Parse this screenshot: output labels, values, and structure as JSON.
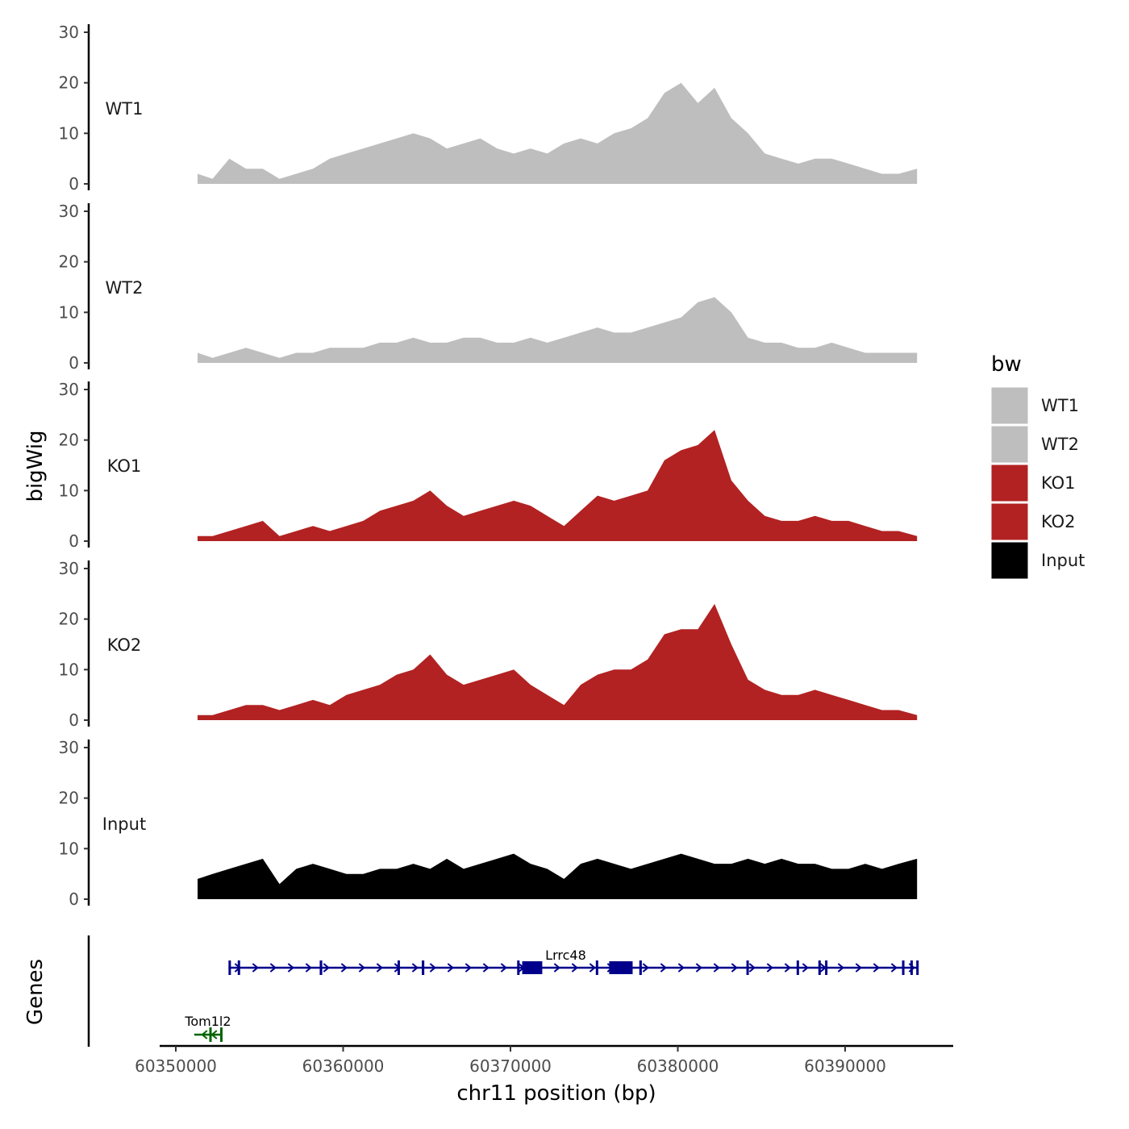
{
  "chart_data": {
    "type": "area",
    "title": "",
    "ylabel": "bigWig",
    "gene_track_label": "Genes",
    "xlabel": "chr11 position (bp)",
    "xlim": [
      60348400,
      60396000
    ],
    "ylim": [
      0,
      30
    ],
    "x_ticks": [
      "60350000",
      "60360000",
      "60370000",
      "60380000",
      "60390000"
    ],
    "x_tick_values": [
      60350000,
      60360000,
      60370000,
      60380000,
      60390000
    ],
    "y_ticks": [
      "0",
      "10",
      "20",
      "30"
    ],
    "y_tick_values": [
      0,
      10,
      20,
      30
    ],
    "x": [
      60351300,
      60352200,
      60353200,
      60354200,
      60355200,
      60356200,
      60357200,
      60358200,
      60359200,
      60360200,
      60361200,
      60362200,
      60363200,
      60364200,
      60365200,
      60366200,
      60367200,
      60368200,
      60369200,
      60370200,
      60371200,
      60372200,
      60373200,
      60374200,
      60375200,
      60376200,
      60377200,
      60378200,
      60379200,
      60380200,
      60381200,
      60382200,
      60383200,
      60384200,
      60385200,
      60386200,
      60387200,
      60388200,
      60389200,
      60390200,
      60391200,
      60392200,
      60393200,
      60394300
    ],
    "legend": {
      "title": "bw",
      "entries": [
        "WT1",
        "WT2",
        "KO1",
        "KO2",
        "Input"
      ]
    },
    "series": [
      {
        "name": "WT1",
        "color": "#bebebe",
        "values": [
          2,
          1,
          5,
          3,
          3,
          1,
          2,
          3,
          5,
          6,
          7,
          8,
          9,
          10,
          9,
          7,
          8,
          9,
          7,
          6,
          7,
          6,
          8,
          9,
          8,
          10,
          11,
          13,
          18,
          20,
          16,
          19,
          13,
          10,
          6,
          5,
          4,
          5,
          5,
          4,
          3,
          2,
          2,
          3
        ]
      },
      {
        "name": "WT2",
        "color": "#bebebe",
        "values": [
          2,
          1,
          2,
          3,
          2,
          1,
          2,
          2,
          3,
          3,
          3,
          4,
          4,
          5,
          4,
          4,
          5,
          5,
          4,
          4,
          5,
          4,
          5,
          6,
          7,
          6,
          6,
          7,
          8,
          9,
          12,
          13,
          10,
          5,
          4,
          4,
          3,
          3,
          4,
          3,
          2,
          2,
          2,
          2
        ]
      },
      {
        "name": "KO1",
        "color": "#b22222",
        "values": [
          1,
          1,
          2,
          3,
          4,
          1,
          2,
          3,
          2,
          3,
          4,
          6,
          7,
          8,
          10,
          7,
          5,
          6,
          7,
          8,
          7,
          5,
          3,
          6,
          9,
          8,
          9,
          10,
          16,
          18,
          19,
          22,
          12,
          8,
          5,
          4,
          4,
          5,
          4,
          4,
          3,
          2,
          2,
          1
        ]
      },
      {
        "name": "KO2",
        "color": "#b22222",
        "values": [
          1,
          1,
          2,
          3,
          3,
          2,
          3,
          4,
          3,
          5,
          6,
          7,
          9,
          10,
          13,
          9,
          7,
          8,
          9,
          10,
          7,
          5,
          3,
          7,
          9,
          10,
          10,
          12,
          17,
          18,
          18,
          23,
          15,
          8,
          6,
          5,
          5,
          6,
          5,
          4,
          3,
          2,
          2,
          1
        ]
      },
      {
        "name": "Input",
        "color": "#000000",
        "values": [
          4,
          5,
          6,
          7,
          8,
          3,
          6,
          7,
          6,
          5,
          5,
          6,
          6,
          7,
          6,
          8,
          6,
          7,
          8,
          9,
          7,
          6,
          4,
          7,
          8,
          7,
          6,
          7,
          8,
          9,
          8,
          7,
          7,
          8,
          7,
          8,
          7,
          7,
          6,
          6,
          7,
          6,
          7,
          8
        ]
      }
    ],
    "genes": [
      {
        "name": "Lrrc48",
        "strand": "+",
        "color": "#00008b",
        "start": 60353150,
        "end": 60394350,
        "exons": [
          [
            60353150,
            60353250
          ],
          [
            60353700,
            60353800
          ],
          [
            60358600,
            60358750
          ],
          [
            60363250,
            60363350
          ],
          [
            60364700,
            60364850
          ],
          [
            60370400,
            60370520
          ],
          [
            60370700,
            60371900
          ],
          [
            60375100,
            60375200
          ],
          [
            60375900,
            60377300
          ],
          [
            60377700,
            60377850
          ],
          [
            60384100,
            60384200
          ],
          [
            60387100,
            60387200
          ],
          [
            60388400,
            60388500
          ],
          [
            60388800,
            60388900
          ],
          [
            60393400,
            60393500
          ],
          [
            60393900,
            60394000
          ],
          [
            60394250,
            60394350
          ]
        ]
      },
      {
        "name": "Tom1l2",
        "strand": "-",
        "color": "#006400",
        "start": 60351100,
        "end": 60352750,
        "exons": [
          [
            60352000,
            60352100
          ],
          [
            60352650,
            60352750
          ]
        ]
      }
    ]
  }
}
